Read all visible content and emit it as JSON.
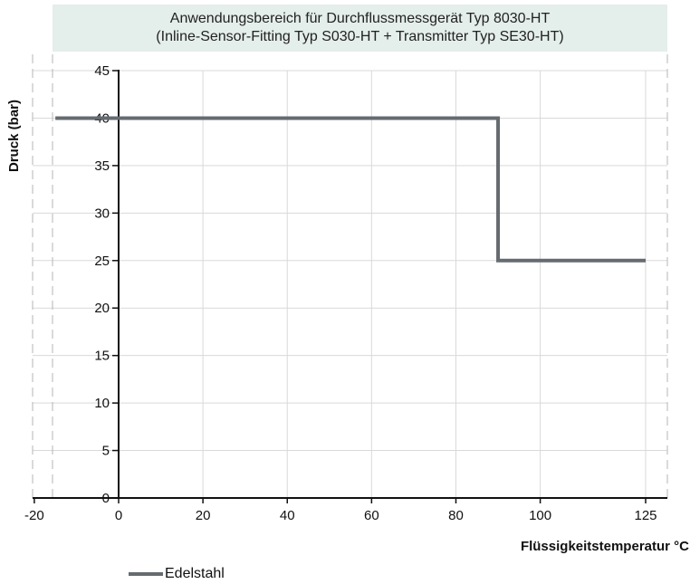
{
  "chart_data": {
    "type": "line",
    "title": [
      "Anwendungsbereich für Durchflussmessgerät Typ 8030-HT",
      "(Inline-Sensor-Fitting Typ S030-HT + Transmitter Typ SE30-HT)"
    ],
    "xlabel": "Flüssigkeitstemperatur °C",
    "ylabel": "Druck (bar)",
    "x_ticks": [
      -20,
      0,
      20,
      40,
      60,
      80,
      100,
      125
    ],
    "y_ticks": [
      0,
      5,
      10,
      15,
      20,
      25,
      30,
      35,
      40,
      45
    ],
    "xlim": [
      -20,
      125
    ],
    "ylim": [
      0,
      45
    ],
    "grid": true,
    "legend_position": "bottom-left",
    "series": [
      {
        "name": "Edelstahl",
        "color": "#666b70",
        "points": [
          [
            -15,
            40
          ],
          [
            90,
            40
          ],
          [
            90,
            25
          ],
          [
            125,
            25
          ]
        ]
      }
    ]
  }
}
